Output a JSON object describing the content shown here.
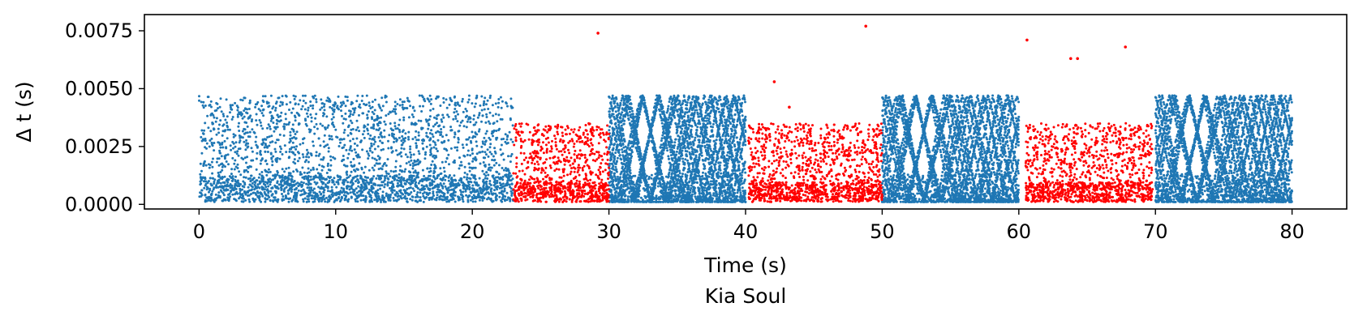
{
  "chart_data": {
    "type": "scatter",
    "title": "",
    "xlabel": "Time (s)",
    "ylabel": "Δ t (s)",
    "caption": "Kia Soul",
    "xlim": [
      -4,
      84
    ],
    "ylim": [
      -0.0002,
      0.0082
    ],
    "x_ticks": [
      0,
      10,
      20,
      30,
      40,
      50,
      60,
      70,
      80
    ],
    "x_tick_labels": [
      "0",
      "10",
      "20",
      "30",
      "40",
      "50",
      "60",
      "70",
      "80"
    ],
    "y_ticks": [
      0.0,
      0.0025,
      0.005,
      0.0075
    ],
    "y_tick_labels": [
      "0.0000",
      "0.0025",
      "0.0050",
      "0.0075"
    ],
    "grid": false,
    "legend": "none",
    "series": [
      {
        "color": "#1f77b4",
        "segments": [
          {
            "x_start": 0,
            "x_end": 23,
            "y_max": 0.0047,
            "pattern": "dense"
          },
          {
            "x_start": 30,
            "x_end": 40,
            "y_max": 0.0047,
            "pattern": "oscillating"
          },
          {
            "x_start": 50,
            "x_end": 60,
            "y_max": 0.0047,
            "pattern": "oscillating"
          },
          {
            "x_start": 70,
            "x_end": 80,
            "y_max": 0.0047,
            "pattern": "oscillating"
          }
        ]
      },
      {
        "color": "#ff0000",
        "segments": [
          {
            "x_start": 23,
            "x_end": 30,
            "y_max": 0.0035,
            "pattern": "dense"
          },
          {
            "x_start": 40.2,
            "x_end": 50,
            "y_max": 0.0035,
            "pattern": "dense"
          },
          {
            "x_start": 60.5,
            "x_end": 69.8,
            "y_max": 0.0035,
            "pattern": "dense"
          }
        ],
        "outliers": [
          {
            "x": 29.2,
            "y": 0.0074
          },
          {
            "x": 42.1,
            "y": 0.0053
          },
          {
            "x": 43.2,
            "y": 0.0042
          },
          {
            "x": 48.8,
            "y": 0.0077
          },
          {
            "x": 60.6,
            "y": 0.0071
          },
          {
            "x": 63.8,
            "y": 0.0063
          },
          {
            "x": 64.3,
            "y": 0.0063
          },
          {
            "x": 67.8,
            "y": 0.0068
          }
        ]
      }
    ]
  }
}
